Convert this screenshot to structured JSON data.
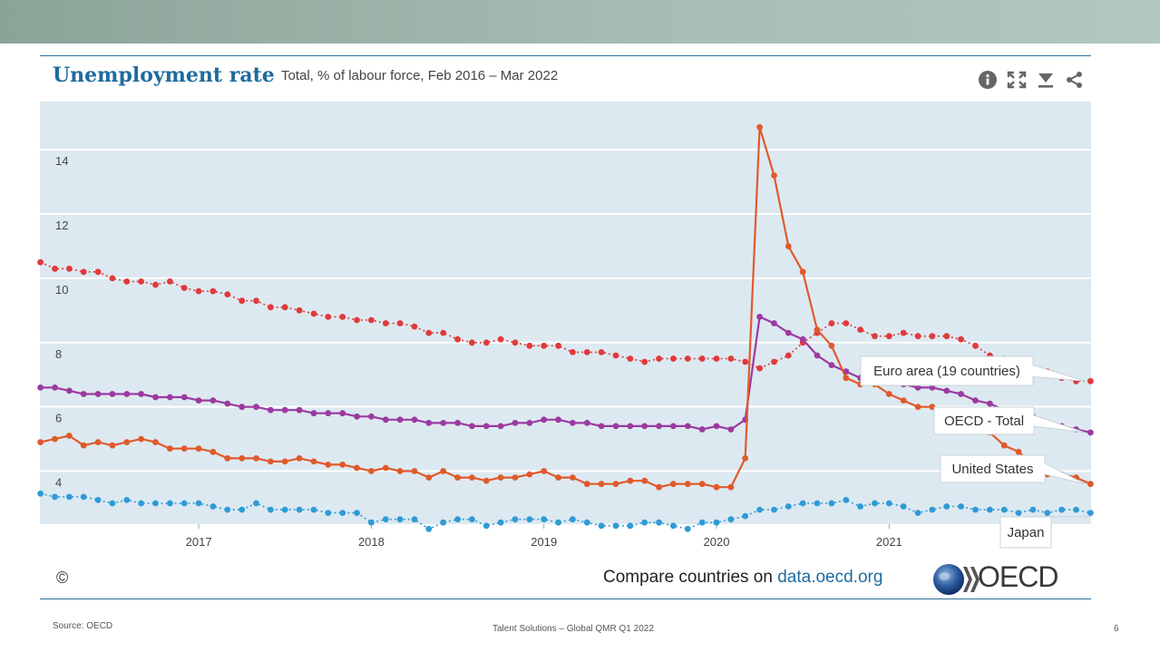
{
  "header": {
    "title": "Unemployment rate",
    "subtitle": "Total, % of labour force, Feb 2016 – Mar 2022"
  },
  "toolbar": {
    "info": "info-icon",
    "expand": "expand-icon",
    "download": "download-icon",
    "share": "share-icon"
  },
  "footer": {
    "copyright": "©",
    "compare_prefix": "Compare countries on ",
    "compare_link": "data.oecd.org",
    "oecd_logo_text": "OECD",
    "source": "Source: OECD",
    "center": "Talent Solutions – Global QMR Q1 2022",
    "page_number": "6"
  },
  "colors": {
    "plot_bg": "#dde9f1",
    "euro": "#e03a3a",
    "oecd": "#9b3aa0",
    "us": "#e05a2b",
    "japan": "#2e9bd6",
    "axis_text": "#444444"
  },
  "chart_data": {
    "type": "line",
    "title": "Unemployment rate",
    "subtitle": "Total, % of labour force, Feb 2016 – Mar 2022",
    "xlabel": "",
    "ylabel": "",
    "xlim": [
      2016.08,
      2022.17
    ],
    "ylim": [
      2.35,
      15.5
    ],
    "y_ticks": [
      4,
      6,
      8,
      10,
      12,
      14
    ],
    "x_ticks": [
      2017,
      2018,
      2019,
      2020,
      2021
    ],
    "x_tick_labels": [
      "2017",
      "2018",
      "2019",
      "2020",
      "2021"
    ],
    "grid": true,
    "start_month": "2016-02",
    "end_month": "2022-03",
    "series": [
      {
        "name": "Euro area (19 countries)",
        "key": "euro",
        "label": "Euro area (19 countries)",
        "values": [
          10.5,
          10.3,
          10.3,
          10.2,
          10.2,
          10.0,
          9.9,
          9.9,
          9.8,
          9.9,
          9.7,
          9.6,
          9.6,
          9.5,
          9.3,
          9.3,
          9.1,
          9.1,
          9.0,
          8.9,
          8.8,
          8.8,
          8.7,
          8.7,
          8.6,
          8.6,
          8.5,
          8.3,
          8.3,
          8.1,
          8.0,
          8.0,
          8.1,
          8.0,
          7.9,
          7.9,
          7.9,
          7.7,
          7.7,
          7.7,
          7.6,
          7.5,
          7.4,
          7.5,
          7.5,
          7.5,
          7.5,
          7.5,
          7.5,
          7.4,
          7.2,
          7.4,
          7.6,
          8.0,
          8.3,
          8.6,
          8.6,
          8.4,
          8.2,
          8.2,
          8.3,
          8.2,
          8.2,
          8.2,
          8.1,
          7.9,
          7.6,
          7.5,
          7.3,
          7.2,
          7.1,
          6.9,
          6.8,
          6.8
        ]
      },
      {
        "name": "OECD - Total",
        "key": "oecd",
        "label": "OECD - Total",
        "values": [
          6.6,
          6.6,
          6.5,
          6.4,
          6.4,
          6.4,
          6.4,
          6.4,
          6.3,
          6.3,
          6.3,
          6.2,
          6.2,
          6.1,
          6.0,
          6.0,
          5.9,
          5.9,
          5.9,
          5.8,
          5.8,
          5.8,
          5.7,
          5.7,
          5.6,
          5.6,
          5.6,
          5.5,
          5.5,
          5.5,
          5.4,
          5.4,
          5.4,
          5.5,
          5.5,
          5.6,
          5.6,
          5.5,
          5.5,
          5.4,
          5.4,
          5.4,
          5.4,
          5.4,
          5.4,
          5.4,
          5.3,
          5.4,
          5.3,
          5.6,
          8.8,
          8.6,
          8.3,
          8.1,
          7.6,
          7.3,
          7.1,
          6.9,
          6.8,
          6.8,
          6.7,
          6.6,
          6.6,
          6.5,
          6.4,
          6.2,
          6.1,
          5.9,
          5.8,
          5.7,
          5.5,
          5.4,
          5.3,
          5.2
        ]
      },
      {
        "name": "United States",
        "key": "us",
        "label": "United States",
        "values": [
          4.9,
          5.0,
          5.1,
          4.8,
          4.9,
          4.8,
          4.9,
          5.0,
          4.9,
          4.7,
          4.7,
          4.7,
          4.6,
          4.4,
          4.4,
          4.4,
          4.3,
          4.3,
          4.4,
          4.3,
          4.2,
          4.2,
          4.1,
          4.0,
          4.1,
          4.0,
          4.0,
          3.8,
          4.0,
          3.8,
          3.8,
          3.7,
          3.8,
          3.8,
          3.9,
          4.0,
          3.8,
          3.8,
          3.6,
          3.6,
          3.6,
          3.7,
          3.7,
          3.5,
          3.6,
          3.6,
          3.6,
          3.5,
          3.5,
          4.4,
          14.7,
          13.2,
          11.0,
          10.2,
          8.4,
          7.9,
          6.9,
          6.7,
          6.7,
          6.4,
          6.2,
          6.0,
          6.0,
          5.8,
          5.9,
          5.4,
          5.2,
          4.8,
          4.6,
          4.2,
          3.9,
          3.9,
          3.8,
          3.6
        ]
      },
      {
        "name": "Japan",
        "key": "japan",
        "label": "Japan",
        "values": [
          3.3,
          3.2,
          3.2,
          3.2,
          3.1,
          3.0,
          3.1,
          3.0,
          3.0,
          3.0,
          3.0,
          3.0,
          2.9,
          2.8,
          2.8,
          3.0,
          2.8,
          2.8,
          2.8,
          2.8,
          2.7,
          2.7,
          2.7,
          2.4,
          2.5,
          2.5,
          2.5,
          2.2,
          2.4,
          2.5,
          2.5,
          2.3,
          2.4,
          2.5,
          2.5,
          2.5,
          2.4,
          2.5,
          2.4,
          2.3,
          2.3,
          2.3,
          2.4,
          2.4,
          2.3,
          2.2,
          2.4,
          2.4,
          2.5,
          2.6,
          2.8,
          2.8,
          2.9,
          3.0,
          3.0,
          3.0,
          3.1,
          2.9,
          3.0,
          3.0,
          2.9,
          2.7,
          2.8,
          2.9,
          2.9,
          2.8,
          2.8,
          2.8,
          2.7,
          2.8,
          2.7,
          2.8,
          2.8,
          2.7
        ]
      }
    ]
  }
}
